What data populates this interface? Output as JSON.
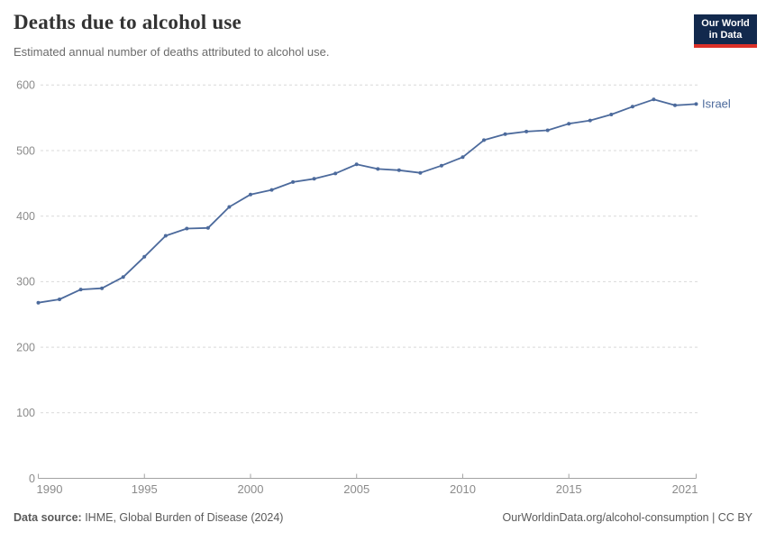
{
  "header": {
    "title": "Deaths due to alcohol use",
    "subtitle": "Estimated annual number of deaths attributed to alcohol use.",
    "logo": {
      "line1": "Our World",
      "line2": "in Data"
    }
  },
  "footer": {
    "source_label": "Data source:",
    "source_value": " IHME, Global Burden of Disease (2024)",
    "attribution": "OurWorldinData.org/alcohol-consumption | CC BY"
  },
  "colors": {
    "series": "#4c6a9c",
    "grid": "#d9d9d9",
    "axis": "#a3a3a3",
    "tick_label": "#8b8b8b",
    "logo_bg": "#12294d",
    "logo_accent": "#dc3028"
  },
  "chart_data": {
    "type": "line",
    "title": "Deaths due to alcohol use",
    "subtitle": "Estimated annual number of deaths attributed to alcohol use.",
    "xlabel": "",
    "ylabel": "",
    "x": [
      1990,
      1991,
      1992,
      1993,
      1994,
      1995,
      1996,
      1997,
      1998,
      1999,
      2000,
      2001,
      2002,
      2003,
      2004,
      2005,
      2006,
      2007,
      2008,
      2009,
      2010,
      2011,
      2012,
      2013,
      2014,
      2015,
      2016,
      2017,
      2018,
      2019,
      2020,
      2021
    ],
    "series": [
      {
        "name": "Israel",
        "values": [
          268,
          273,
          288,
          290,
          307,
          338,
          370,
          381,
          382,
          414,
          433,
          440,
          452,
          457,
          465,
          479,
          472,
          470,
          466,
          477,
          490,
          516,
          525,
          529,
          531,
          541,
          546,
          555,
          567,
          578,
          569,
          571
        ]
      }
    ],
    "xlim": [
      1990,
      2021
    ],
    "ylim": [
      0,
      600
    ],
    "y_ticks": [
      0,
      100,
      200,
      300,
      400,
      500,
      600
    ],
    "x_ticks": [
      1990,
      1995,
      2000,
      2005,
      2010,
      2015,
      2021
    ],
    "grid": "horizontal-dashed",
    "legend": "end-of-line-label",
    "markers": true
  }
}
